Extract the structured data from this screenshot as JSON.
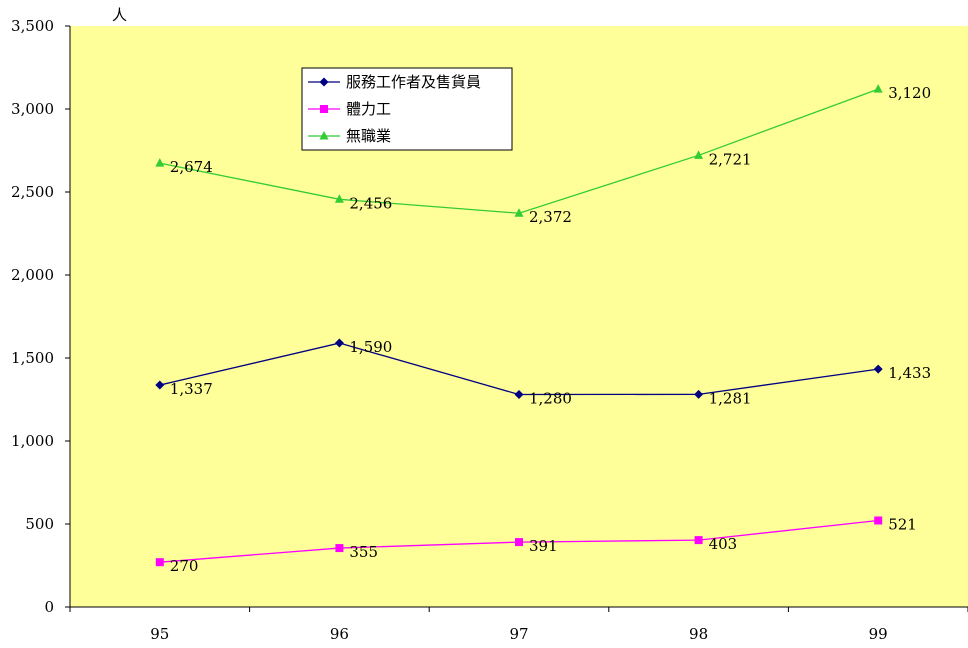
{
  "chart_data": {
    "type": "line",
    "ylabel": "人",
    "xlabel": "",
    "title": "",
    "categories": [
      "95",
      "96",
      "97",
      "98",
      "99"
    ],
    "ylim": [
      0,
      3500
    ],
    "yticks": [
      "0",
      "500",
      "1,000",
      "1,500",
      "2,000",
      "2,500",
      "3,000",
      "3,500"
    ],
    "yticks_values": [
      0,
      500,
      1000,
      1500,
      2000,
      2500,
      3000,
      3500
    ],
    "legend_position": "top-center",
    "grid": false,
    "plot_background": "#FFFF99",
    "series": [
      {
        "name": "服務工作者及售貨員",
        "values": [
          1337,
          1590,
          1280,
          1281,
          1433
        ],
        "labels": [
          "1,337",
          "1,590",
          "1,280",
          "1,281",
          "1,433"
        ],
        "color": "#000080",
        "marker": "diamond"
      },
      {
        "name": "體力工",
        "values": [
          270,
          355,
          391,
          403,
          521
        ],
        "labels": [
          "270",
          "355",
          "391",
          "403",
          "521"
        ],
        "color": "#FF00FF",
        "marker": "square"
      },
      {
        "name": "無職業",
        "values": [
          2674,
          2456,
          2372,
          2721,
          3120
        ],
        "labels": [
          "2,674",
          "2,456",
          "2,372",
          "2,721",
          "3,120"
        ],
        "color": "#33CC33",
        "marker": "triangle"
      }
    ]
  }
}
